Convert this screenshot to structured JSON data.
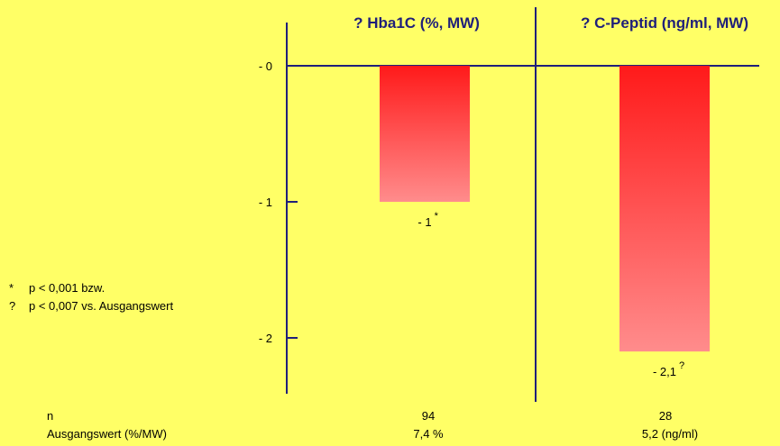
{
  "chart_data": {
    "type": "bar",
    "panels": [
      {
        "title": "? Hba1C (%, MW)",
        "value": -1,
        "label": "- 1",
        "marker": "*"
      },
      {
        "title": "? C-Peptid (ng/ml, MW)",
        "value": -2.1,
        "label": "- 2,1",
        "marker": "?"
      }
    ],
    "y_ticks": [
      {
        "value": 0,
        "label": "- 0"
      },
      {
        "value": -1,
        "label": "- 1"
      },
      {
        "value": -2,
        "label": "- 2"
      }
    ],
    "ylim": [
      -2.4,
      0.3
    ],
    "bar_gradient": {
      "top": "#FF1A1A",
      "bottom": "#FF8C8C"
    },
    "axis_color": "#1F1F7A",
    "background": "#FFFF66"
  },
  "footnotes": [
    {
      "symbol": "*",
      "text": "p < 0,001 bzw."
    },
    {
      "symbol": "?",
      "text": "p < 0,007 vs. Ausgangswert"
    }
  ],
  "table": {
    "n_label": "n",
    "n_values": [
      "94",
      "28"
    ],
    "baseline_label": "Ausgangswert (%/MW)",
    "baseline_values": [
      "7,4 %",
      "5,2 (ng/ml)"
    ]
  }
}
